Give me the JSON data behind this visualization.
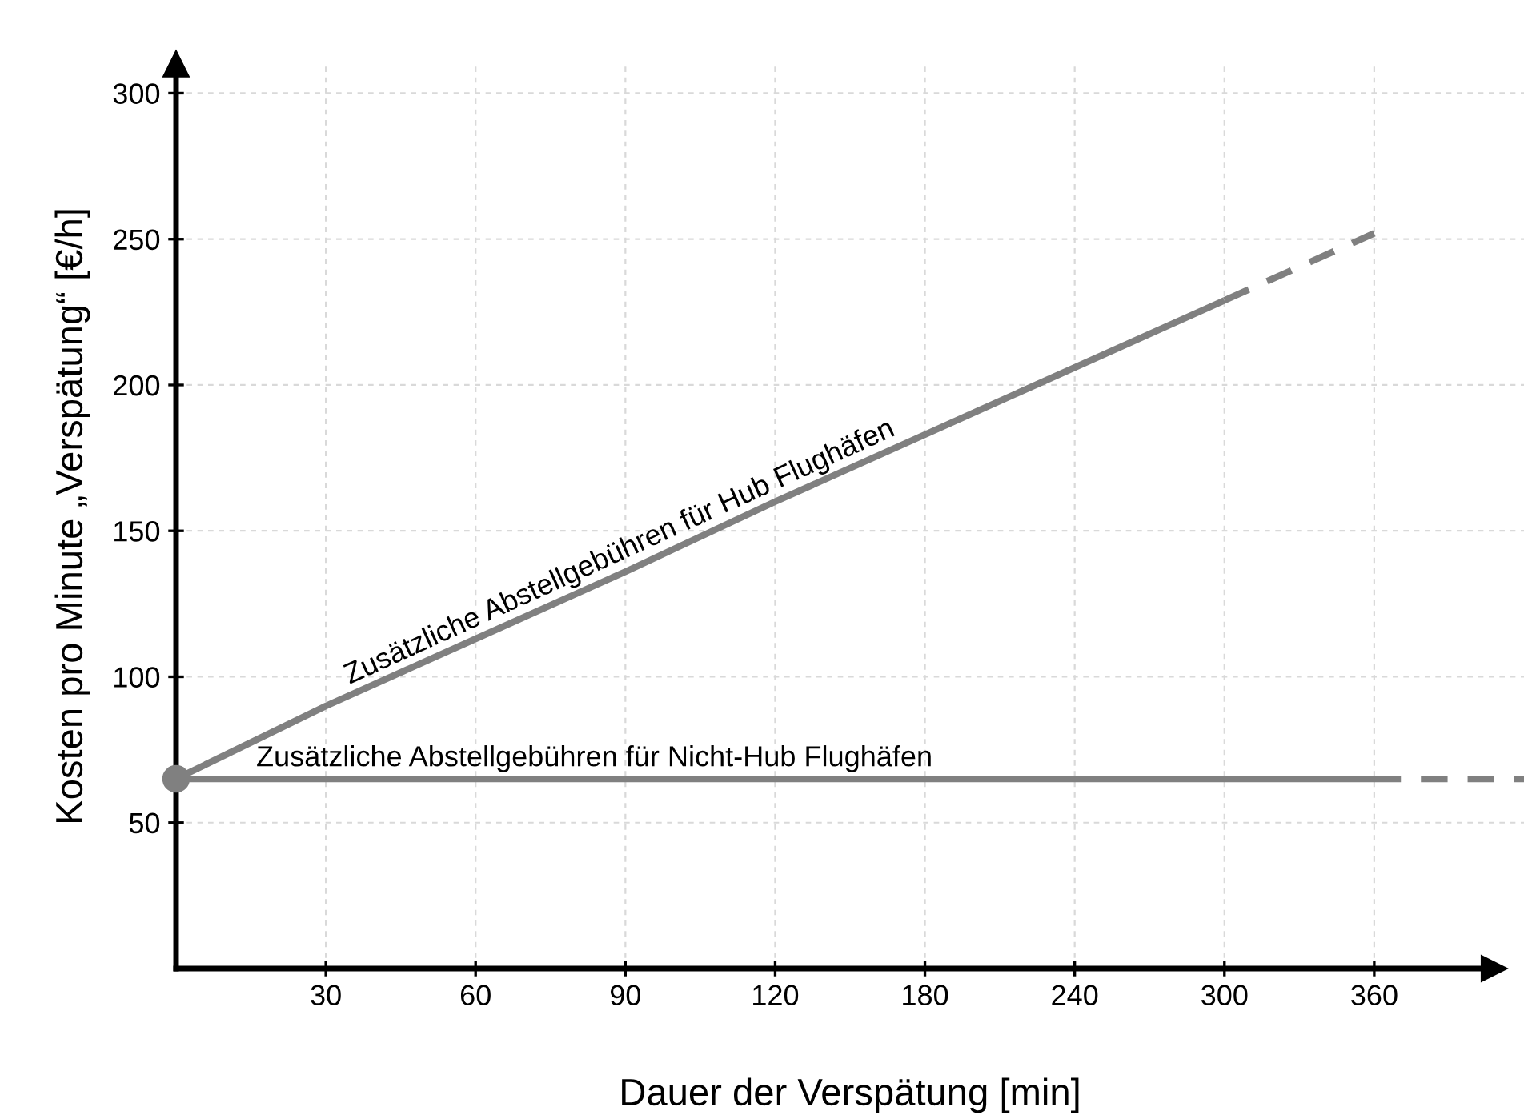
{
  "chart_data": {
    "type": "line",
    "xlabel": "Dauer der Verspätung [min]",
    "ylabel": "Kosten pro Minute „Verspätung“ [€/h]",
    "categories": [
      null,
      "30",
      "60",
      "90",
      "120",
      "180",
      "240",
      "300",
      "360",
      null
    ],
    "ylim": [
      0,
      310
    ],
    "yticks": [
      50,
      100,
      150,
      200,
      250,
      300
    ],
    "grid": true,
    "series": [
      {
        "color": "#808080",
        "line_style": "solid",
        "values": [
          65,
          90,
          113,
          136,
          160,
          183,
          206,
          229,
          null,
          null
        ]
      },
      {
        "color": "#808080",
        "line_style": "dashed",
        "values": [
          null,
          null,
          null,
          null,
          null,
          null,
          null,
          229,
          252,
          null
        ]
      },
      {
        "color": "#808080",
        "line_style": "solid",
        "values": [
          65,
          65,
          65,
          65,
          65,
          65,
          65,
          65,
          65,
          null
        ]
      },
      {
        "color": "#808080",
        "line_style": "dashed",
        "values": [
          null,
          null,
          null,
          null,
          null,
          null,
          null,
          null,
          65,
          65
        ]
      },
      {
        "type": "scatter",
        "color": "#808080",
        "marker": "circle",
        "values": [
          65,
          null,
          null,
          null,
          null,
          null,
          null,
          null,
          null,
          null
        ]
      }
    ],
    "annotations": [
      {
        "text": "Zusätzliche Abstellgebühren für Hub Flughäfen",
        "x": "90",
        "y": 136
      },
      {
        "text": "Zusätzliche Abstellgebühren für Nicht-Hub Flughäfen",
        "y": 65
      }
    ]
  }
}
